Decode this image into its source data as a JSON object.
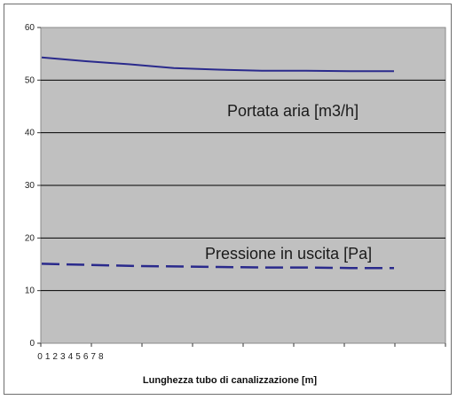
{
  "chart_data": {
    "type": "line",
    "xlabel": "Lunghezza tubo di canalizzazione [m]",
    "x_tick_labels": [
      "0",
      "1",
      "2",
      "3",
      "4",
      "5",
      "6",
      "7",
      "8"
    ],
    "ylim": [
      0,
      60
    ],
    "yticks": [
      0,
      10,
      20,
      30,
      40,
      50,
      60
    ],
    "grid": true,
    "x_points": [
      0,
      1,
      2,
      3,
      4,
      5,
      6,
      7,
      8
    ],
    "series": [
      {
        "name": "Portata aria  [m3/h]",
        "style": "solid",
        "color": "#2a2a8c",
        "values": [
          54.3,
          53.6,
          53.0,
          52.3,
          52.0,
          51.8,
          51.8,
          51.7,
          51.7
        ]
      },
      {
        "name": "Pressione in uscita [Pa]",
        "style": "dashed",
        "color": "#2a2a8c",
        "values": [
          15.1,
          14.9,
          14.7,
          14.6,
          14.5,
          14.4,
          14.4,
          14.3,
          14.3
        ]
      }
    ]
  }
}
